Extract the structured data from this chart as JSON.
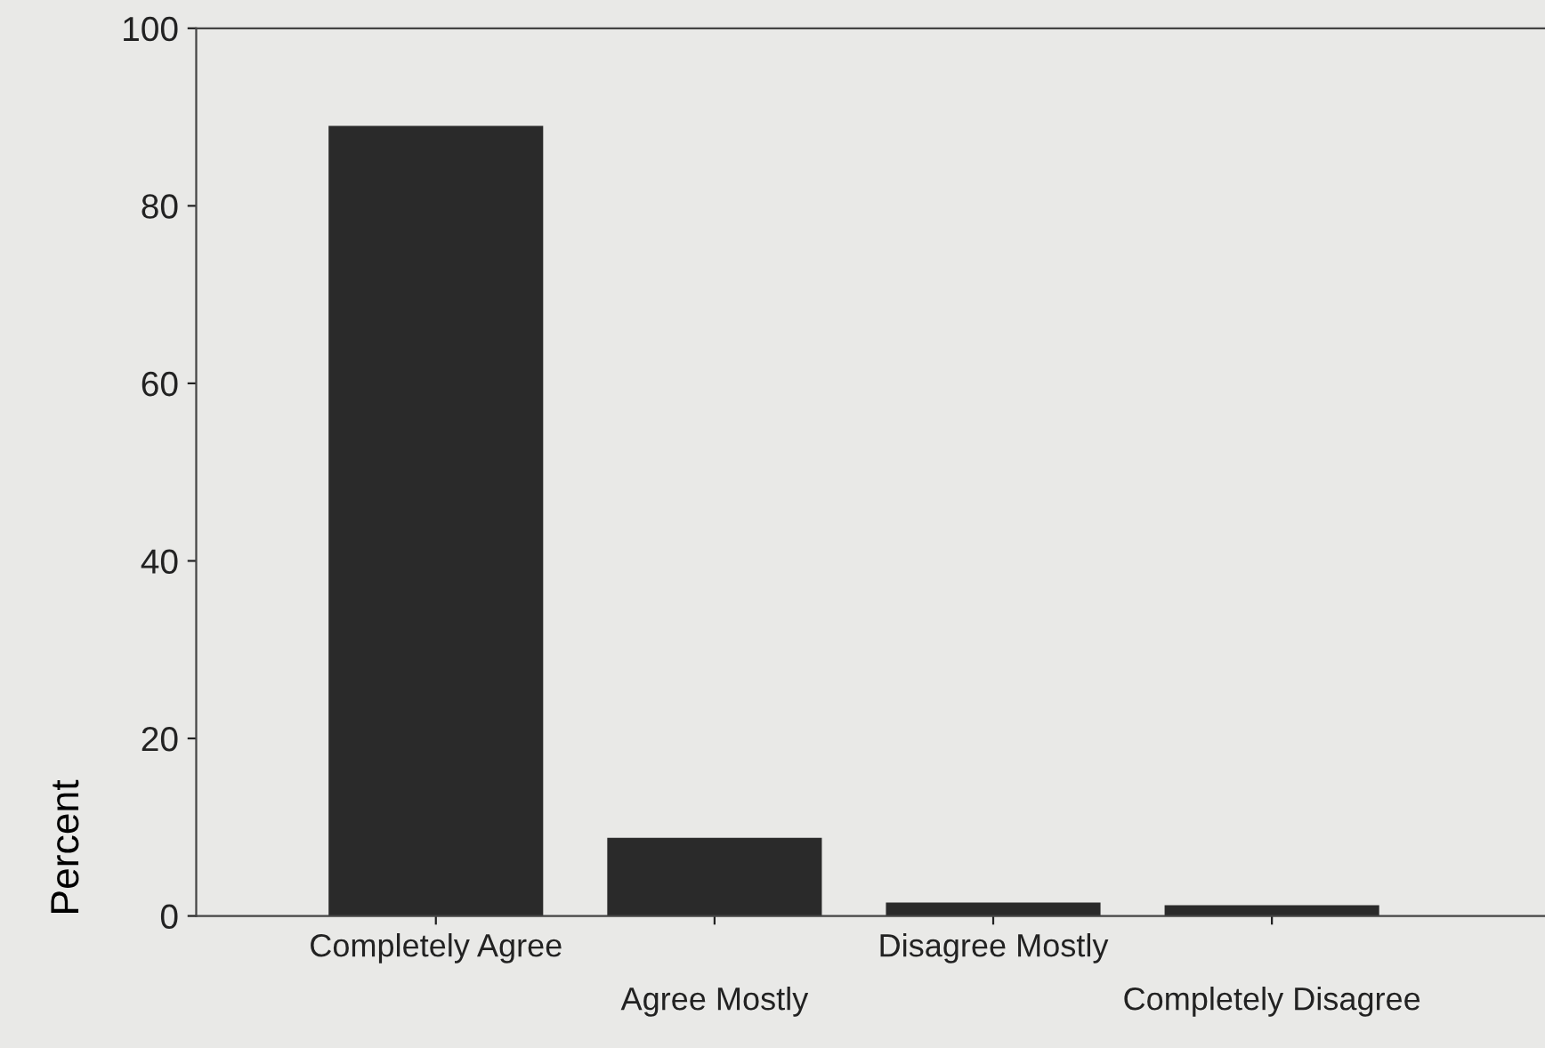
{
  "chart_data": {
    "type": "bar",
    "ylabel": "Percent",
    "categories": [
      "Completely Agree",
      "Agree Mostly",
      "Disagree Mostly",
      "Completely Disagree"
    ],
    "values": [
      89,
      8.8,
      1.5,
      1.2
    ],
    "color": "#2a2a2a",
    "ylim": [
      0,
      100
    ],
    "yticks": [
      0,
      20,
      40,
      60,
      80,
      100
    ],
    "grid": false,
    "legend": false
  }
}
